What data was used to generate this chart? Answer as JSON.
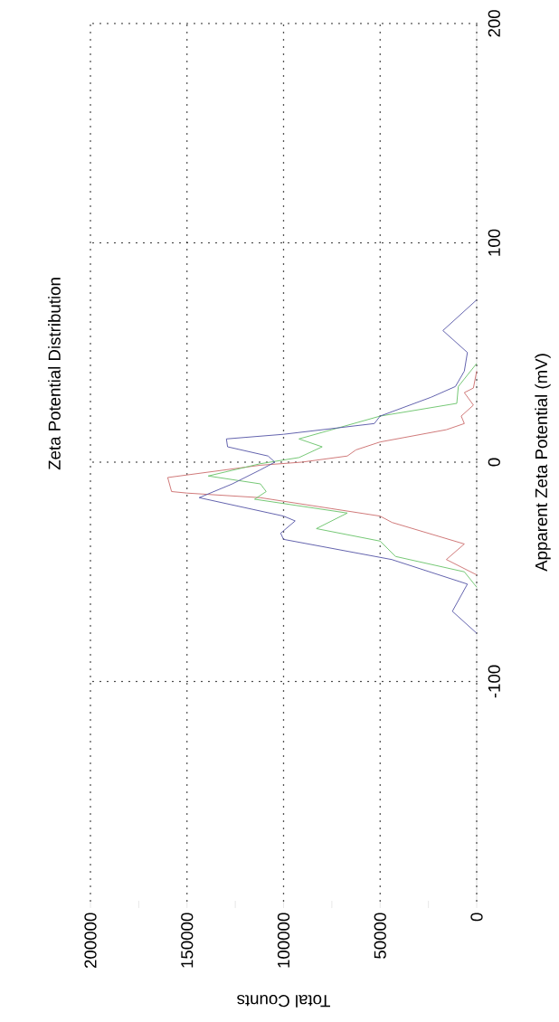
{
  "chart_data": {
    "type": "line",
    "title": "Zeta Potential Distribution",
    "xlabel": "Total Counts",
    "ylabel": "Apparent Zeta Potential (mV)",
    "xlim": [
      200000,
      0
    ],
    "ylim": [
      -200,
      200
    ],
    "xticks": [
      0,
      {
        "value": 25000,
        "label": null
      },
      50000,
      {
        "value": 75000,
        "label": null
      },
      100000,
      {
        "value": 125000,
        "label": null
      },
      150000,
      {
        "value": 175000,
        "label": null
      },
      200000
    ],
    "yticks": [
      -100,
      0,
      100,
      200
    ],
    "grid": true,
    "marker": "none",
    "line_style": "solid",
    "series": [
      {
        "color": "#cc7070",
        "x": [
          0,
          15700,
          6400,
          43800,
          50000,
          112000,
          150000,
          158000,
          160000,
          112000,
          90600,
          67000,
          62500,
          50000,
          15700,
          6400,
          8000,
          1700,
          6400,
          1700,
          0
        ],
        "values": [
          -51.4,
          -44.4,
          -37.3,
          -27.5,
          -24.6,
          -16.2,
          -14.1,
          -13.4,
          -7,
          -1.4,
          0,
          2.8,
          5.6,
          9.2,
          14.8,
          17.6,
          21,
          26,
          31.7,
          33.8,
          41.5
        ]
      },
      {
        "color": "#6cc46c",
        "x": [
          0,
          6400,
          42000,
          50000,
          83000,
          67000,
          115000,
          109000,
          112000,
          139000,
          112000,
          92000,
          80000,
          92000,
          75000,
          50000,
          10300,
          9500,
          0
        ],
        "values": [
          -57,
          -50,
          -43,
          -36,
          -30.3,
          -23.2,
          -16.9,
          -13.4,
          -9.9,
          -6.3,
          -0.7,
          2.1,
          7,
          10.6,
          14.8,
          21,
          26.8,
          34.5,
          45
        ]
      },
      {
        "color": "#5858a8",
        "x": [
          0,
          12600,
          4800,
          44000,
          100000,
          101500,
          94000,
          100000,
          143700,
          126500,
          112000,
          104500,
          108000,
          129000,
          129600,
          100000,
          53000,
          50000,
          23600,
          11000,
          6400,
          4800,
          17500,
          0
        ],
        "values": [
          -78,
          -68,
          -55.6,
          -44.4,
          -35.2,
          -32.4,
          -26.8,
          -24.6,
          -16.2,
          -9.9,
          -3.5,
          0,
          2.8,
          7,
          10.6,
          12.7,
          17.6,
          21,
          29.6,
          34.5,
          41.5,
          50,
          60,
          74
        ]
      }
    ]
  }
}
